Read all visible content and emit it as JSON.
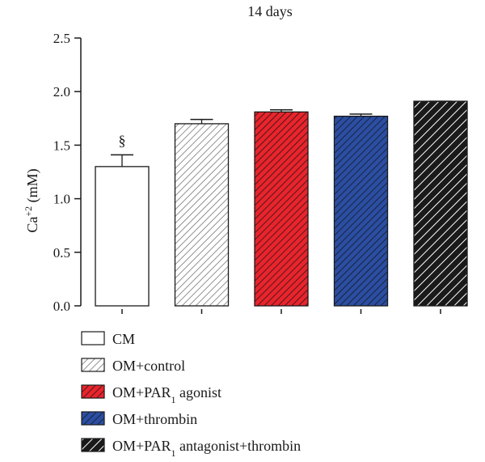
{
  "chart_data": {
    "type": "bar",
    "title": "14 days",
    "xlabel": "",
    "ylabel": "Ca",
    "ylabel_sup": "+2",
    "ylabel_unit": " (mM)",
    "ylim": [
      0,
      2.5
    ],
    "yticks": [
      "0.0",
      "0.5",
      "1.0",
      "1.5",
      "2.0",
      "2.5"
    ],
    "categories": [
      "CM",
      "OM+control",
      "OM+PAR1 agonist",
      "OM+thrombin",
      "OM+PAR1 antagonist+thrombin"
    ],
    "values": [
      1.3,
      1.7,
      1.81,
      1.77,
      1.91
    ],
    "errors": [
      0.11,
      0.04,
      0.02,
      0.02,
      0.0
    ],
    "annotations": [
      {
        "category": "CM",
        "text": "§"
      }
    ],
    "grid": false,
    "legend_position": "bottom-left",
    "colors": [
      "#ffffff",
      "#ffffff",
      "#e8242c",
      "#2b4ea2",
      "#1a1a1a"
    ],
    "hatch_colors": [
      "none",
      "#777777",
      "#111111",
      "#111111",
      "#ffffff"
    ],
    "legend": [
      {
        "prefix": "CM",
        "sub": "",
        "suffix": ""
      },
      {
        "prefix": "OM+control",
        "sub": "",
        "suffix": ""
      },
      {
        "prefix": "OM+PAR",
        "sub": "1",
        "suffix": " agonist"
      },
      {
        "prefix": "OM+thrombin",
        "sub": "",
        "suffix": ""
      },
      {
        "prefix": "OM+PAR",
        "sub": "1",
        "suffix": " antagonist+thrombin"
      }
    ]
  }
}
